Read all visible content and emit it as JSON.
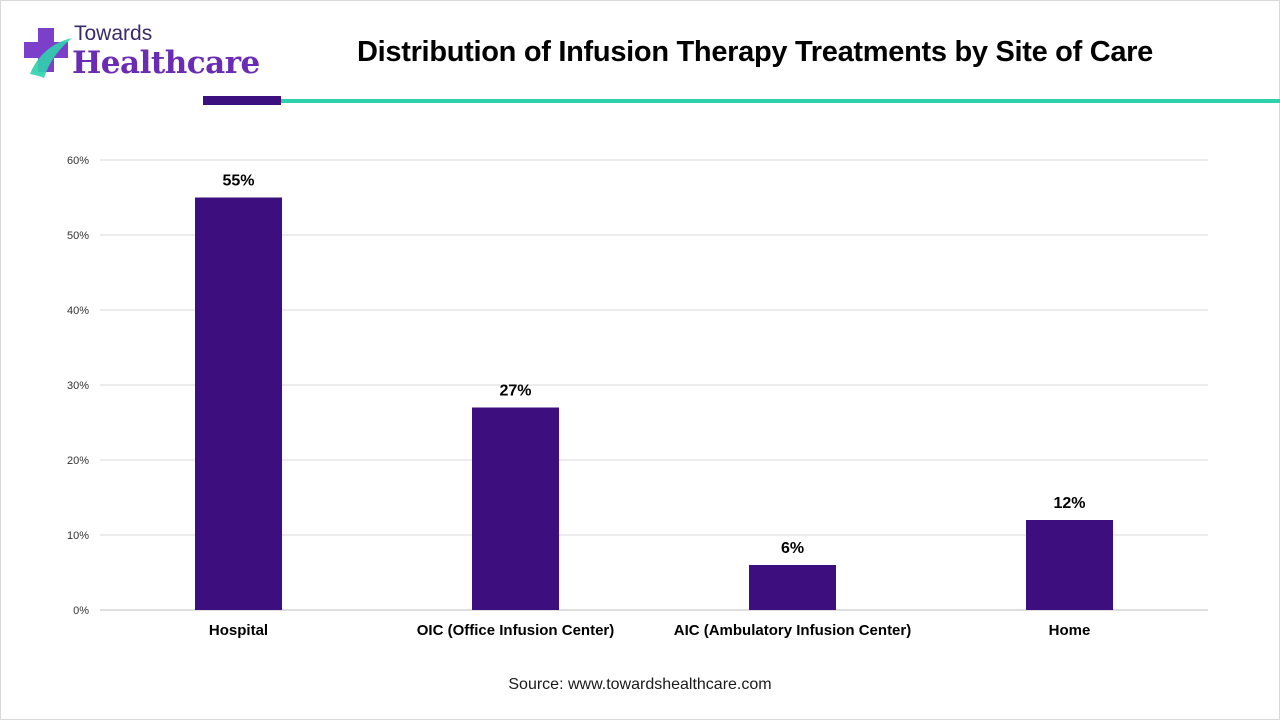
{
  "brand": {
    "line1": "Towards",
    "line2": "Healthcare",
    "colors": {
      "purple": "#3d1080",
      "teal": "#2fd1ad",
      "logo_purple": "#6a2bb5"
    }
  },
  "source": "Source: www.towardshealthcare.com",
  "chart_data": {
    "type": "bar",
    "title": "Distribution of Infusion Therapy Treatments by Site of Care",
    "categories": [
      "Hospital",
      "OIC (Office Infusion Center)",
      "AIC (Ambulatory Infusion Center)",
      "Home"
    ],
    "values": [
      55,
      27,
      6,
      12
    ],
    "value_labels": [
      "55%",
      "27%",
      "6%",
      "12%"
    ],
    "ylim": [
      0,
      60
    ],
    "y_ticks": [
      0,
      10,
      20,
      30,
      40,
      50,
      60
    ],
    "y_tick_labels": [
      "0%",
      "10%",
      "20%",
      "30%",
      "40%",
      "50%",
      "60%"
    ],
    "grid": true,
    "bar_color": "#3d0f7e",
    "legend": "none"
  }
}
